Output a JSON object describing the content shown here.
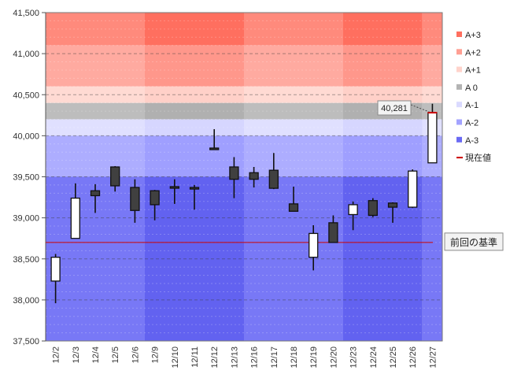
{
  "chart_data": {
    "type": "candlestick",
    "y_ticks": [
      "41,500",
      "41,000",
      "40,500",
      "40,000",
      "39,500",
      "39,000",
      "38,500",
      "38,000",
      "37,500"
    ],
    "ylim": [
      37500,
      41500
    ],
    "categories": [
      "12/2",
      "12/3",
      "12/4",
      "12/5",
      "12/6",
      "12/9",
      "12/10",
      "12/11",
      "12/12",
      "12/13",
      "12/16",
      "12/17",
      "12/18",
      "12/19",
      "12/20",
      "12/23",
      "12/24",
      "12/25",
      "12/26",
      "12/27"
    ],
    "candles": [
      {
        "open": 38230,
        "close": 38520,
        "high": 38560,
        "low": 37960
      },
      {
        "open": 38750,
        "close": 39240,
        "high": 39420,
        "low": 38750
      },
      {
        "open": 39330,
        "close": 39270,
        "high": 39410,
        "low": 39060
      },
      {
        "open": 39620,
        "close": 39390,
        "high": 39630,
        "low": 39320
      },
      {
        "open": 39370,
        "close": 39090,
        "high": 39470,
        "low": 38940
      },
      {
        "open": 39330,
        "close": 39160,
        "high": 39340,
        "low": 38970
      },
      {
        "open": 39380,
        "close": 39370,
        "high": 39470,
        "low": 39170
      },
      {
        "open": 39370,
        "close": 39360,
        "high": 39400,
        "low": 39100
      },
      {
        "open": 39850,
        "close": 39840,
        "high": 40080,
        "low": 39840
      },
      {
        "open": 39620,
        "close": 39470,
        "high": 39740,
        "low": 39240
      },
      {
        "open": 39550,
        "close": 39470,
        "high": 39620,
        "low": 39370
      },
      {
        "open": 39580,
        "close": 39360,
        "high": 39790,
        "low": 39350
      },
      {
        "open": 39170,
        "close": 39080,
        "high": 39380,
        "low": 39080
      },
      {
        "open": 38520,
        "close": 38810,
        "high": 38910,
        "low": 38360
      },
      {
        "open": 38940,
        "close": 38700,
        "high": 39030,
        "low": 38700
      },
      {
        "open": 39040,
        "close": 39160,
        "high": 39200,
        "low": 38850
      },
      {
        "open": 39210,
        "close": 39030,
        "high": 39240,
        "low": 39010
      },
      {
        "open": 39180,
        "close": 39130,
        "high": 39190,
        "low": 38940
      },
      {
        "open": 39130,
        "close": 39570,
        "high": 39590,
        "low": 39120
      },
      {
        "open": 39670,
        "close": 40281,
        "high": 40390,
        "low": 39670
      }
    ],
    "bands": [
      {
        "name": "A+3",
        "from": 41100,
        "to": 41500
      },
      {
        "name": "A+2",
        "from": 40600,
        "to": 41100
      },
      {
        "name": "A+1",
        "from": 40400,
        "to": 40600
      },
      {
        "name": "A 0",
        "from": 40200,
        "to": 40400
      },
      {
        "name": "A-1",
        "from": 40000,
        "to": 40200
      },
      {
        "name": "A-2",
        "from": 39500,
        "to": 40000
      },
      {
        "name": "A-3",
        "from": 37500,
        "to": 39500
      }
    ],
    "reference_line": {
      "value": 38700,
      "label": "前回の基準"
    },
    "current_callout": "40,281",
    "legend": [
      {
        "label": "A+3",
        "color": "#ff6f5f"
      },
      {
        "label": "A+2",
        "color": "#ff9f93"
      },
      {
        "label": "A+1",
        "color": "#ffd3cb"
      },
      {
        "label": "A 0",
        "color": "#b3b3b3"
      },
      {
        "label": "A-1",
        "color": "#dadaff"
      },
      {
        "label": "A-2",
        "color": "#a3a3ff"
      },
      {
        "label": "A-3",
        "color": "#6a6af4"
      },
      {
        "label": "現在値",
        "color": "#cc0000"
      }
    ],
    "legend_position": "right",
    "grid": true
  }
}
